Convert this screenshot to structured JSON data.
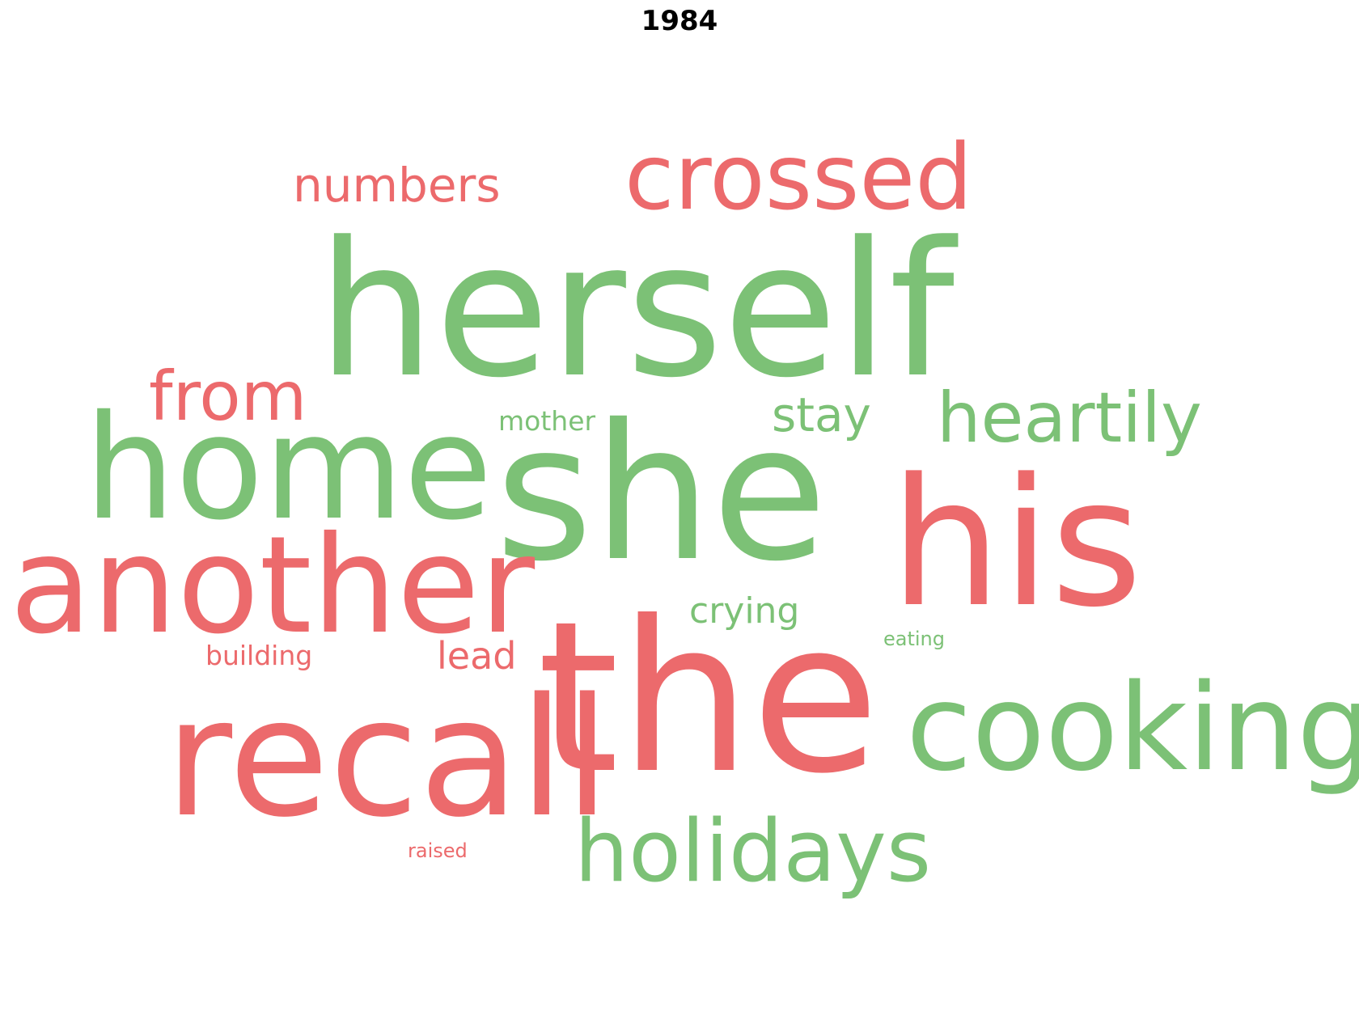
{
  "title": "1984",
  "colors": {
    "red": "#ec6a6c",
    "green": "#7cc176"
  },
  "words": [
    {
      "text": "herself",
      "color": "green"
    },
    {
      "text": "she",
      "color": "green"
    },
    {
      "text": "the",
      "color": "red"
    },
    {
      "text": "his",
      "color": "red"
    },
    {
      "text": "home",
      "color": "green"
    },
    {
      "text": "another",
      "color": "red"
    },
    {
      "text": "recall",
      "color": "red"
    },
    {
      "text": "cooking",
      "color": "green"
    },
    {
      "text": "crossed",
      "color": "red"
    },
    {
      "text": "holidays",
      "color": "green"
    },
    {
      "text": "heartily",
      "color": "green"
    },
    {
      "text": "from",
      "color": "red"
    },
    {
      "text": "numbers",
      "color": "red"
    },
    {
      "text": "stay",
      "color": "green"
    },
    {
      "text": "crying",
      "color": "green"
    },
    {
      "text": "lead",
      "color": "red"
    },
    {
      "text": "mother",
      "color": "green"
    },
    {
      "text": "building",
      "color": "red"
    },
    {
      "text": "eating",
      "color": "green"
    },
    {
      "text": "raised",
      "color": "red"
    }
  ]
}
